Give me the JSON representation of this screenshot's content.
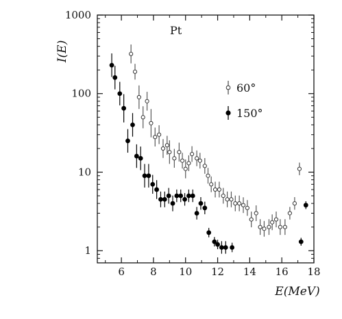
{
  "chart_data": {
    "type": "scatter",
    "title": "",
    "annotation": "Pt",
    "xlabel": "E(MeV)",
    "ylabel": "I(E)",
    "xlim": [
      4.5,
      18
    ],
    "ylim": [
      0.7,
      1000
    ],
    "x_scale": "linear",
    "y_scale": "log",
    "grid": false,
    "legend_position": "upper-right",
    "x_ticks": [
      6,
      8,
      10,
      12,
      14,
      16,
      18
    ],
    "x_tick_labels": [
      "6",
      "8",
      "10",
      "12",
      "14",
      "16",
      "18"
    ],
    "y_ticks": [
      1,
      10,
      100,
      1000
    ],
    "y_tick_labels": [
      "1",
      "10",
      "100",
      "1000"
    ],
    "series": [
      {
        "name": "60°",
        "marker": "open-circle",
        "x": [
          6.6,
          6.85,
          7.1,
          7.35,
          7.6,
          7.85,
          8.1,
          8.35,
          8.6,
          8.85,
          9.0,
          9.3,
          9.6,
          9.8,
          10.0,
          10.2,
          10.4,
          10.7,
          10.9,
          11.2,
          11.4,
          11.6,
          11.85,
          12.1,
          12.35,
          12.6,
          12.85,
          13.1,
          13.35,
          13.6,
          13.85,
          14.1,
          14.4,
          14.65,
          14.9,
          15.2,
          15.4,
          15.65,
          15.9,
          16.2,
          16.5,
          16.8,
          17.1
        ],
        "y": [
          320,
          190,
          90,
          50,
          80,
          42,
          28,
          30,
          20,
          22,
          18,
          15,
          18,
          14,
          11,
          13,
          17,
          15,
          14,
          12,
          9,
          7,
          6,
          6,
          5,
          4.5,
          4.5,
          4,
          4,
          3.8,
          3.5,
          2.5,
          3,
          2,
          1.9,
          2,
          2.3,
          2.5,
          2,
          2,
          3,
          4,
          11
        ],
        "err": [
          0.12,
          0.1,
          0.15,
          0.14,
          0.12,
          0.18,
          0.12,
          0.12,
          0.12,
          0.12,
          0.15,
          0.12,
          0.12,
          0.1,
          0.12,
          0.1,
          0.1,
          0.1,
          0.1,
          0.1,
          0.1,
          0.1,
          0.1,
          0.1,
          0.1,
          0.1,
          0.1,
          0.1,
          0.1,
          0.1,
          0.1,
          0.1,
          0.1,
          0.1,
          0.1,
          0.1,
          0.1,
          0.1,
          0.1,
          0.1,
          0.08,
          0.08,
          0.08
        ]
      },
      {
        "name": "150°",
        "marker": "filled-circle",
        "x": [
          5.4,
          5.6,
          5.9,
          6.15,
          6.4,
          6.7,
          6.95,
          7.2,
          7.45,
          7.7,
          7.95,
          8.2,
          8.45,
          8.7,
          8.95,
          9.2,
          9.45,
          9.7,
          9.95,
          10.2,
          10.45,
          10.7,
          10.95,
          11.2,
          11.45,
          11.8,
          12.0,
          12.25,
          12.5,
          12.9,
          17.2,
          17.5
        ],
        "y": [
          230,
          160,
          100,
          65,
          25,
          40,
          16,
          15,
          9,
          9,
          7,
          6,
          4.5,
          4.5,
          5,
          4,
          5,
          5,
          4.5,
          5,
          5,
          3,
          4,
          3.5,
          1.7,
          1.3,
          1.2,
          1.1,
          1.1,
          1.1,
          1.3,
          3.8
        ],
        "err": [
          0.15,
          0.15,
          0.15,
          0.18,
          0.15,
          0.15,
          0.15,
          0.15,
          0.15,
          0.15,
          0.12,
          0.12,
          0.1,
          0.1,
          0.1,
          0.1,
          0.08,
          0.08,
          0.08,
          0.08,
          0.08,
          0.08,
          0.08,
          0.08,
          0.06,
          0.06,
          0.06,
          0.08,
          0.08,
          0.06,
          0.05,
          0.05
        ]
      }
    ]
  }
}
